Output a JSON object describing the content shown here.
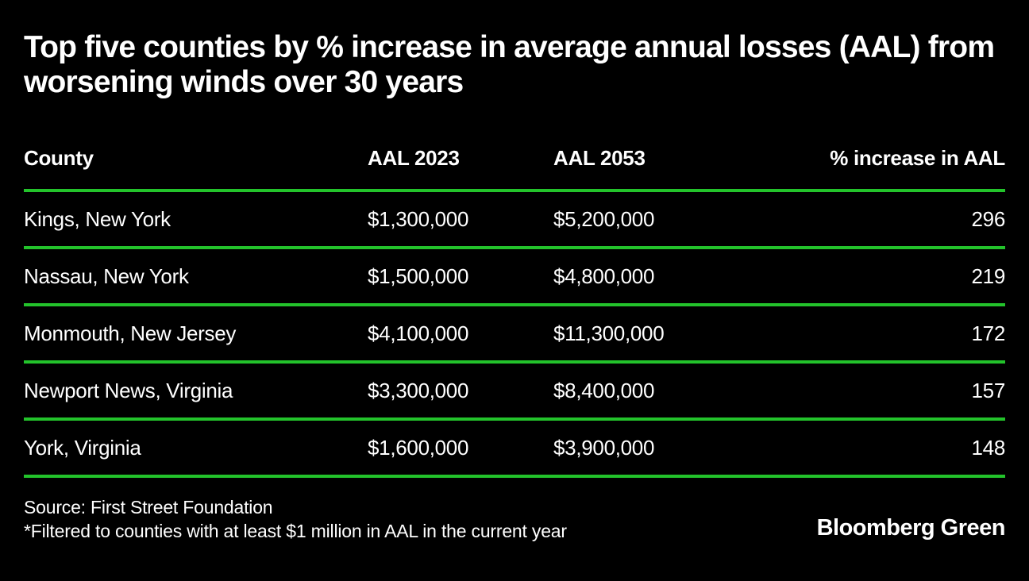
{
  "title": "Top five counties by % increase in average annual losses (AAL) from worsening winds over 30 years",
  "colors": {
    "background": "#000000",
    "text": "#ffffff",
    "divider_green": "#23c32b"
  },
  "table": {
    "columns": [
      "County",
      "AAL 2023",
      "AAL 2053",
      "% increase in AAL"
    ],
    "rows": [
      {
        "county": "Kings, New York",
        "aal_2023": "$1,300,000",
        "aal_2053": "$5,200,000",
        "pct_increase": "296"
      },
      {
        "county": "Nassau, New York",
        "aal_2023": "$1,500,000",
        "aal_2053": "$4,800,000",
        "pct_increase": "219"
      },
      {
        "county": "Monmouth, New Jersey",
        "aal_2023": "$4,100,000",
        "aal_2053": "$11,300,000",
        "pct_increase": "172"
      },
      {
        "county": "Newport News, Virginia",
        "aal_2023": "$3,300,000",
        "aal_2053": "$8,400,000",
        "pct_increase": "157"
      },
      {
        "county": "York, Virginia",
        "aal_2023": "$1,600,000",
        "aal_2053": "$3,900,000",
        "pct_increase": "148"
      }
    ]
  },
  "footer": {
    "source": "Source: First Street Foundation",
    "note": "*Filtered to counties with at least $1 million in AAL in the current year",
    "brand": "Bloomberg Green"
  },
  "chart_data": {
    "type": "table",
    "title": "Top five counties by % increase in average annual losses (AAL) from worsening winds over 30 years",
    "columns": [
      "County",
      "AAL 2023",
      "AAL 2053",
      "% increase in AAL"
    ],
    "rows": [
      [
        "Kings, New York",
        1300000,
        5200000,
        296
      ],
      [
        "Nassau, New York",
        1500000,
        4800000,
        219
      ],
      [
        "Monmouth, New Jersey",
        4100000,
        11300000,
        172
      ],
      [
        "Newport News, Virginia",
        3300000,
        8400000,
        157
      ],
      [
        "York, Virginia",
        1600000,
        3900000,
        148
      ]
    ],
    "source": "First Street Foundation",
    "note": "*Filtered to counties with at least $1 million in AAL in the current year"
  }
}
